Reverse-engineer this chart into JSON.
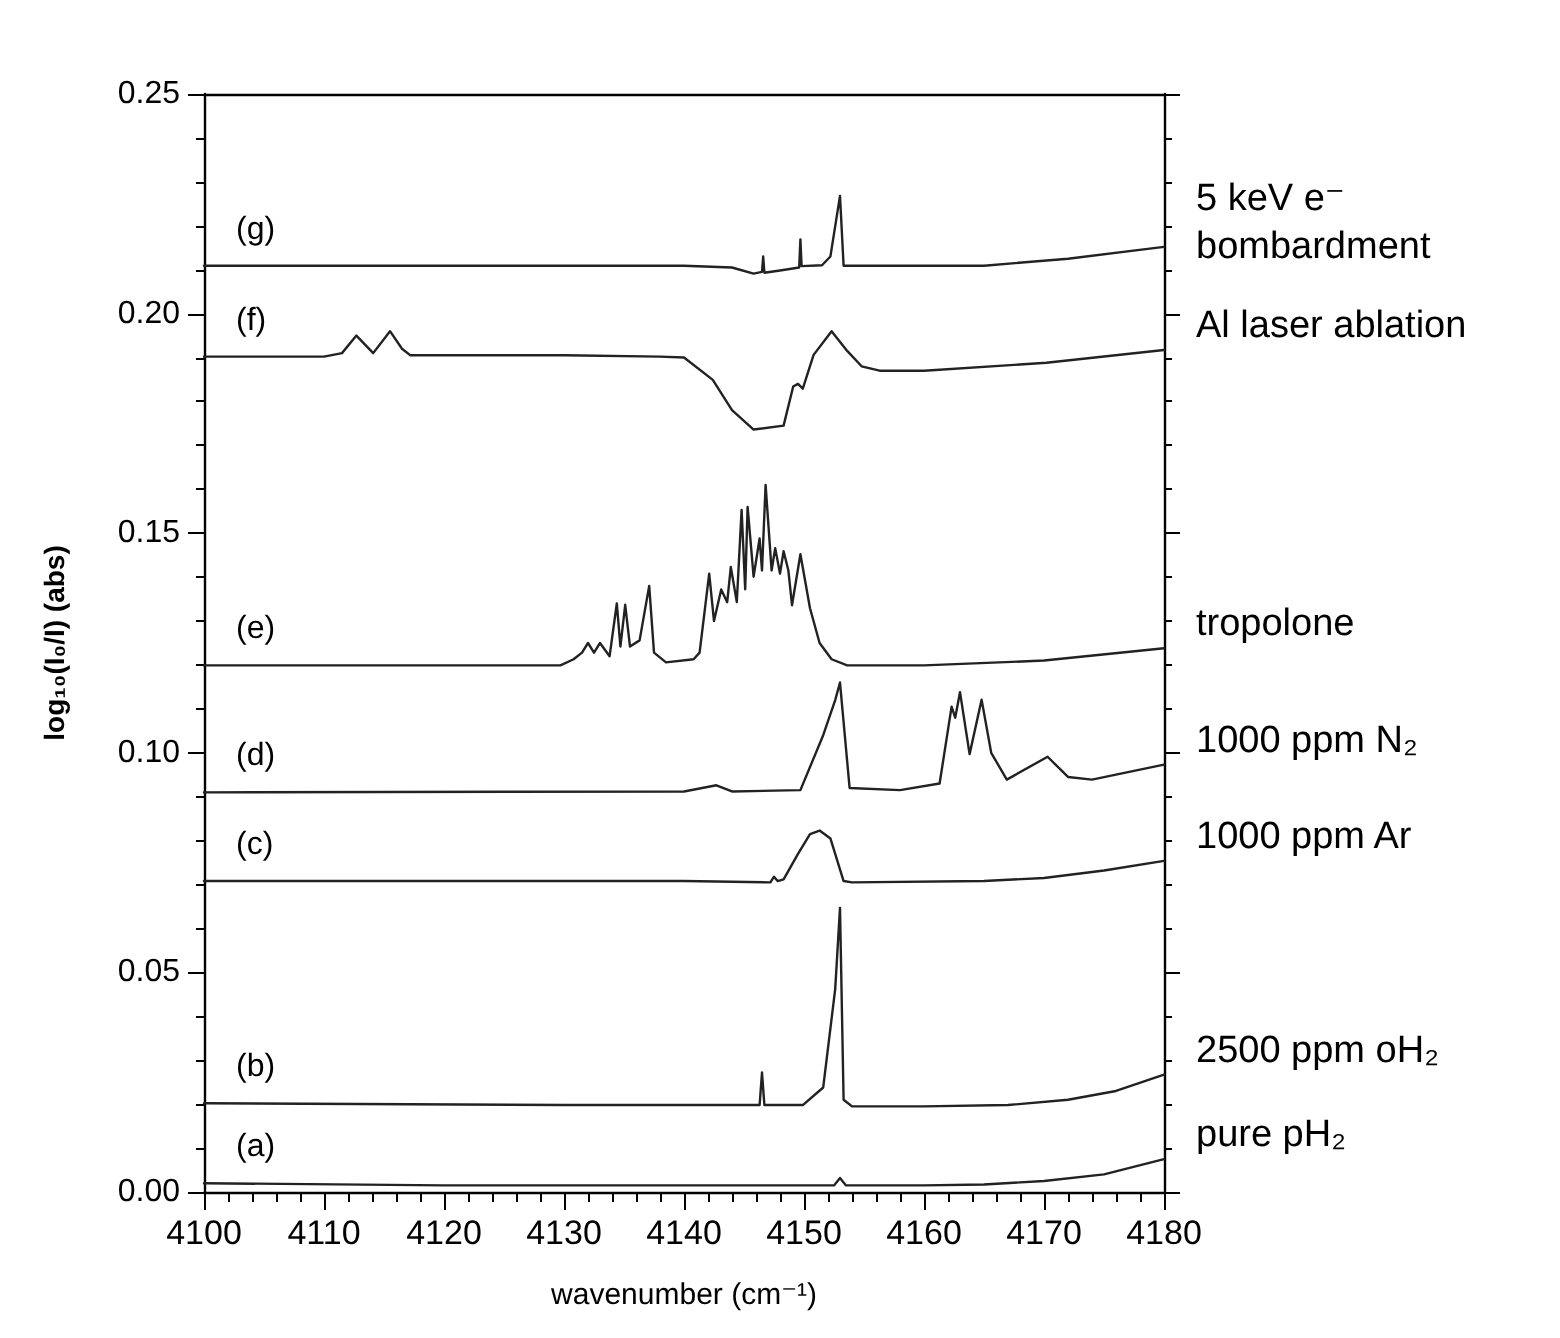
{
  "chart_data": {
    "type": "line",
    "xlabel": "wavenumber (cm⁻¹)",
    "ylabel": "log₁₀(I₀/I) (abs)",
    "xlim": [
      4100,
      4180
    ],
    "xticks": [
      4100,
      4110,
      4120,
      4130,
      4140,
      4150,
      4160,
      4170,
      4180
    ],
    "ylim": [
      0,
      0.25
    ],
    "yticks": [
      {
        "value": 0,
        "label": "0.00"
      },
      {
        "value": 0.05,
        "label": "0.05"
      },
      {
        "value": 0.1,
        "label": "0.10"
      },
      {
        "value": 0.15,
        "label": "0.15"
      },
      {
        "value": 0.2,
        "label": "0.20"
      },
      {
        "value": 0.25,
        "label": "0.25"
      }
    ],
    "series": [
      {
        "name": "pure pH₂",
        "color": "#222222",
        "x": [
          4100,
          4120,
          4140,
          4150,
          4152.5,
          4153,
          4153.5,
          4160,
          4165,
          4170,
          4175,
          4180
        ],
        "values": [
          0.002,
          0.0015,
          0.0015,
          0.0015,
          0.0015,
          0.0032,
          0.0015,
          0.0015,
          0.0017,
          0.0025,
          0.004,
          0.0075
        ]
      },
      {
        "name": "2500 ppm oH₂",
        "color": "#222222",
        "x": [
          4100,
          4130,
          4146.3,
          4146.5,
          4146.7,
          4149.9,
          4151.6,
          4152.6,
          4153,
          4153.3,
          4154,
          4160,
          4167,
          4172,
          4176,
          4180
        ],
        "values": [
          0.0202,
          0.0198,
          0.0198,
          0.0272,
          0.0198,
          0.0198,
          0.0238,
          0.0462,
          0.0647,
          0.021,
          0.0195,
          0.0195,
          0.0198,
          0.021,
          0.023,
          0.0267
        ]
      },
      {
        "name": "1000 ppm Ar",
        "color": "#222222",
        "x": [
          4100,
          4140,
          4147.2,
          4147.5,
          4147.8,
          4148.3,
          4149.5,
          4150.5,
          4151.3,
          4152.2,
          4153.3,
          4154,
          4165,
          4170,
          4175,
          4180
        ],
        "values": [
          0.0708,
          0.0708,
          0.0705,
          0.0718,
          0.0708,
          0.0712,
          0.077,
          0.0815,
          0.0823,
          0.0805,
          0.0708,
          0.0705,
          0.0708,
          0.0715,
          0.0732,
          0.0754
        ]
      },
      {
        "name": "1000 ppm N₂",
        "color": "#222222",
        "x": [
          4100,
          4140,
          4142.7,
          4144,
          4149.7,
          4151.6,
          4152.6,
          4153,
          4153.8,
          4158,
          4161.3,
          4162.3,
          4162.6,
          4163,
          4163.8,
          4164.8,
          4165.6,
          4166.9,
          4170.3,
          4172,
          4174,
          4180
        ],
        "values": [
          0.091,
          0.0912,
          0.0926,
          0.0912,
          0.0915,
          0.104,
          0.112,
          0.116,
          0.092,
          0.0915,
          0.093,
          0.1105,
          0.108,
          0.1138,
          0.0997,
          0.1121,
          0.1,
          0.0939,
          0.0991,
          0.0945,
          0.0939,
          0.0973
        ]
      },
      {
        "name": "tropolone",
        "color": "#222222",
        "x": [
          4100,
          4129.7,
          4130.8,
          4131.5,
          4132,
          4132.5,
          4133,
          4133.8,
          4134.4,
          4134.7,
          4135.1,
          4135.5,
          4136.3,
          4137.1,
          4137.5,
          4138.5,
          4140.8,
          4141.3,
          4142.1,
          4142.5,
          4143.1,
          4143.6,
          4143.9,
          4144.4,
          4144.8,
          4145.1,
          4145.3,
          4145.8,
          4146.3,
          4146.5,
          4146.8,
          4147.3,
          4147.6,
          4148,
          4148.3,
          4148.7,
          4149,
          4149.7,
          4150.5,
          4151.3,
          4152.3,
          4153.6,
          4160,
          4170,
          4180
        ],
        "values": [
          0.1199,
          0.1199,
          0.1213,
          0.1228,
          0.125,
          0.1228,
          0.125,
          0.122,
          0.134,
          0.1242,
          0.1337,
          0.1242,
          0.1256,
          0.138,
          0.1228,
          0.1206,
          0.1213,
          0.1228,
          0.1408,
          0.13,
          0.1372,
          0.1343,
          0.1423,
          0.1343,
          0.1553,
          0.1372,
          0.156,
          0.1401,
          0.1488,
          0.1415,
          0.161,
          0.1415,
          0.1466,
          0.1408,
          0.1459,
          0.1415,
          0.1336,
          0.1452,
          0.1329,
          0.125,
          0.1213,
          0.1199,
          0.1199,
          0.121,
          0.1238
        ]
      },
      {
        "name": "Al laser ablation",
        "color": "#222222",
        "x": [
          4100,
          4110,
          4111.5,
          4112.7,
          4114.1,
          4115.5,
          4116.5,
          4117.2,
          4130,
          4138,
          4140,
          4142.4,
          4144,
          4145.8,
          4148.3,
          4149.1,
          4149.5,
          4149.9,
          4150.8,
          4152.3,
          4153.6,
          4154.8,
          4156.3,
          4160,
          4170.2,
          4180
        ],
        "values": [
          0.1902,
          0.1902,
          0.191,
          0.195,
          0.191,
          0.196,
          0.192,
          0.1905,
          0.1905,
          0.1902,
          0.19,
          0.1849,
          0.178,
          0.1736,
          0.1745,
          0.1834,
          0.184,
          0.1829,
          0.1906,
          0.196,
          0.1915,
          0.188,
          0.187,
          0.187,
          0.1888,
          0.1917
        ]
      },
      {
        "name": "5 keV e⁻ bombardment",
        "color": "#222222",
        "x": [
          4100,
          4140,
          4144,
          4145.8,
          4146.5,
          4146.6,
          4146.7,
          4148,
          4149.6,
          4149.7,
          4149.8,
          4151.5,
          4152.2,
          4153,
          4153.3,
          4155,
          4165,
          4172,
          4180
        ],
        "values": [
          0.2109,
          0.2109,
          0.2105,
          0.2091,
          0.2095,
          0.213,
          0.2093,
          0.2098,
          0.2105,
          0.2169,
          0.2108,
          0.211,
          0.213,
          0.2268,
          0.2109,
          0.2109,
          0.2109,
          0.2125,
          0.2152
        ]
      }
    ],
    "annotations": [
      "(a)",
      "(b)",
      "(c)",
      "(d)",
      "(e)",
      "(f)",
      "(g)"
    ]
  }
}
